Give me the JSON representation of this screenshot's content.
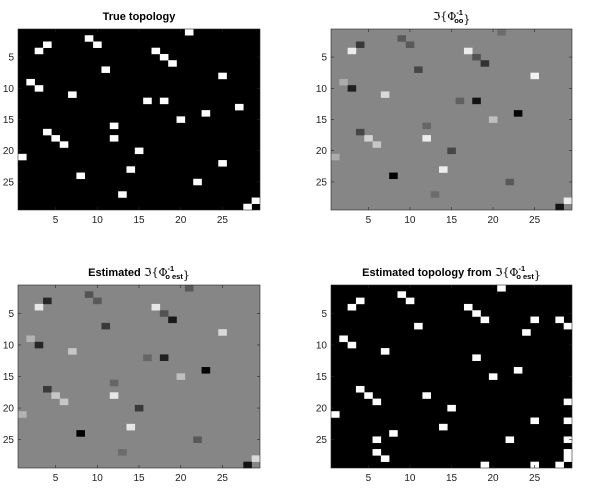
{
  "chart_data": [
    {
      "type": "heatmap",
      "title_parts": [
        {
          "t": "True topology"
        }
      ],
      "size": 29,
      "colormap": "gray",
      "clim": [
        -1,
        1
      ],
      "background": -1,
      "xticks": [
        5,
        10,
        15,
        20,
        25
      ],
      "yticks": [
        5,
        10,
        15,
        20,
        25
      ],
      "cells": [
        {
          "row": 1,
          "col": 21,
          "v": 1
        },
        {
          "row": 2,
          "col": 9,
          "v": 1
        },
        {
          "row": 3,
          "col": 4,
          "v": 1
        },
        {
          "row": 3,
          "col": 10,
          "v": 1
        },
        {
          "row": 4,
          "col": 3,
          "v": 1
        },
        {
          "row": 4,
          "col": 17,
          "v": 1
        },
        {
          "row": 5,
          "col": 18,
          "v": 1
        },
        {
          "row": 6,
          "col": 19,
          "v": 1
        },
        {
          "row": 7,
          "col": 11,
          "v": 1
        },
        {
          "row": 8,
          "col": 25,
          "v": 1
        },
        {
          "row": 9,
          "col": 2,
          "v": 1
        },
        {
          "row": 10,
          "col": 3,
          "v": 1
        },
        {
          "row": 11,
          "col": 7,
          "v": 1
        },
        {
          "row": 12,
          "col": 16,
          "v": 1
        },
        {
          "row": 12,
          "col": 18,
          "v": 1
        },
        {
          "row": 13,
          "col": 27,
          "v": 1
        },
        {
          "row": 14,
          "col": 23,
          "v": 1
        },
        {
          "row": 15,
          "col": 20,
          "v": 1
        },
        {
          "row": 16,
          "col": 12,
          "v": 1
        },
        {
          "row": 17,
          "col": 4,
          "v": 1
        },
        {
          "row": 18,
          "col": 5,
          "v": 1
        },
        {
          "row": 18,
          "col": 12,
          "v": 1
        },
        {
          "row": 19,
          "col": 6,
          "v": 1
        },
        {
          "row": 20,
          "col": 15,
          "v": 1
        },
        {
          "row": 21,
          "col": 1,
          "v": 1
        },
        {
          "row": 22,
          "col": 25,
          "v": 1
        },
        {
          "row": 23,
          "col": 14,
          "v": 1
        },
        {
          "row": 24,
          "col": 8,
          "v": 1
        },
        {
          "row": 25,
          "col": 22,
          "v": 1
        },
        {
          "row": 27,
          "col": 13,
          "v": 1
        },
        {
          "row": 28,
          "col": 29,
          "v": 1
        },
        {
          "row": 29,
          "col": 28,
          "v": 1
        }
      ]
    },
    {
      "type": "heatmap",
      "title_parts": [
        {
          "t": "ℑ{Φ",
          "m": true
        },
        {
          "sup": "-1",
          "sub": "oo"
        },
        {
          "t": "}",
          "m": true
        }
      ],
      "size": 29,
      "colormap": "gray",
      "clim": [
        -1,
        1
      ],
      "background": 0.05,
      "xticks": [
        5,
        10,
        15,
        20,
        25
      ],
      "yticks": [
        5,
        10,
        15,
        20,
        25
      ],
      "cells": [
        {
          "row": 1,
          "col": 21,
          "v": -0.15
        },
        {
          "row": 2,
          "col": 9,
          "v": -0.3
        },
        {
          "row": 3,
          "col": 4,
          "v": -0.55
        },
        {
          "row": 3,
          "col": 10,
          "v": -0.3
        },
        {
          "row": 4,
          "col": 3,
          "v": 0.85
        },
        {
          "row": 4,
          "col": 17,
          "v": 0.85
        },
        {
          "row": 5,
          "col": 18,
          "v": -0.35
        },
        {
          "row": 6,
          "col": 19,
          "v": -0.6
        },
        {
          "row": 7,
          "col": 11,
          "v": -0.45
        },
        {
          "row": 8,
          "col": 25,
          "v": 0.9
        },
        {
          "row": 9,
          "col": 2,
          "v": 0.35
        },
        {
          "row": 10,
          "col": 3,
          "v": -0.75
        },
        {
          "row": 11,
          "col": 7,
          "v": 0.7
        },
        {
          "row": 12,
          "col": 16,
          "v": -0.25
        },
        {
          "row": 12,
          "col": 18,
          "v": -0.85
        },
        {
          "row": 14,
          "col": 23,
          "v": -0.95
        },
        {
          "row": 15,
          "col": 20,
          "v": 0.5
        },
        {
          "row": 16,
          "col": 12,
          "v": -0.2
        },
        {
          "row": 17,
          "col": 4,
          "v": -0.45
        },
        {
          "row": 18,
          "col": 5,
          "v": 0.65
        },
        {
          "row": 18,
          "col": 12,
          "v": 0.85
        },
        {
          "row": 19,
          "col": 6,
          "v": 0.55
        },
        {
          "row": 20,
          "col": 15,
          "v": -0.45
        },
        {
          "row": 21,
          "col": 1,
          "v": 0.35
        },
        {
          "row": 23,
          "col": 14,
          "v": 0.85
        },
        {
          "row": 24,
          "col": 8,
          "v": -1.0
        },
        {
          "row": 25,
          "col": 22,
          "v": -0.3
        },
        {
          "row": 27,
          "col": 13,
          "v": -0.15
        },
        {
          "row": 28,
          "col": 29,
          "v": 0.85
        },
        {
          "row": 29,
          "col": 28,
          "v": -0.85
        }
      ]
    },
    {
      "type": "heatmap",
      "title_parts": [
        {
          "t": "Estimated "
        },
        {
          "t": "ℑ{Φ",
          "m": true
        },
        {
          "sup": "-1",
          "sub": "o est"
        },
        {
          "t": "}",
          "m": true
        }
      ],
      "size": 29,
      "colormap": "gray",
      "clim": [
        -1,
        1
      ],
      "background": 0.05,
      "xticks": [
        5,
        10,
        15,
        20,
        25
      ],
      "yticks": [
        5,
        10,
        15,
        20,
        25
      ],
      "cells": [
        {
          "row": 1,
          "col": 21,
          "v": -0.3
        },
        {
          "row": 2,
          "col": 9,
          "v": -0.35
        },
        {
          "row": 3,
          "col": 4,
          "v": -0.7
        },
        {
          "row": 3,
          "col": 10,
          "v": -0.3
        },
        {
          "row": 4,
          "col": 3,
          "v": 0.8
        },
        {
          "row": 4,
          "col": 17,
          "v": 0.8
        },
        {
          "row": 5,
          "col": 18,
          "v": -0.35
        },
        {
          "row": 6,
          "col": 19,
          "v": -0.8
        },
        {
          "row": 7,
          "col": 11,
          "v": -0.55
        },
        {
          "row": 8,
          "col": 25,
          "v": 0.7
        },
        {
          "row": 9,
          "col": 2,
          "v": 0.4
        },
        {
          "row": 10,
          "col": 3,
          "v": -0.7
        },
        {
          "row": 11,
          "col": 7,
          "v": 0.55
        },
        {
          "row": 12,
          "col": 16,
          "v": -0.2
        },
        {
          "row": 12,
          "col": 18,
          "v": -0.75
        },
        {
          "row": 14,
          "col": 23,
          "v": -0.95
        },
        {
          "row": 15,
          "col": 20,
          "v": 0.5
        },
        {
          "row": 16,
          "col": 12,
          "v": -0.2
        },
        {
          "row": 17,
          "col": 4,
          "v": -0.55
        },
        {
          "row": 18,
          "col": 5,
          "v": 0.55
        },
        {
          "row": 18,
          "col": 12,
          "v": 0.8
        },
        {
          "row": 19,
          "col": 6,
          "v": 0.55
        },
        {
          "row": 20,
          "col": 15,
          "v": -0.55
        },
        {
          "row": 21,
          "col": 1,
          "v": 0.4
        },
        {
          "row": 23,
          "col": 14,
          "v": 0.8
        },
        {
          "row": 24,
          "col": 8,
          "v": -1.0
        },
        {
          "row": 25,
          "col": 22,
          "v": -0.3
        },
        {
          "row": 27,
          "col": 13,
          "v": -0.15
        },
        {
          "row": 28,
          "col": 29,
          "v": 0.7
        },
        {
          "row": 29,
          "col": 28,
          "v": -0.85
        }
      ]
    },
    {
      "type": "heatmap",
      "title_parts": [
        {
          "t": "Estimated topology from "
        },
        {
          "t": "ℑ{Φ",
          "m": true
        },
        {
          "sup": "-1",
          "sub": "o est"
        },
        {
          "t": "}",
          "m": true
        }
      ],
      "size": 29,
      "colormap": "gray",
      "clim": [
        -1,
        1
      ],
      "background": -1,
      "xticks": [
        5,
        10,
        15,
        20,
        25
      ],
      "yticks": [
        5,
        10,
        15,
        20,
        25
      ],
      "cells": [
        {
          "row": 1,
          "col": 21,
          "v": 1
        },
        {
          "row": 2,
          "col": 9,
          "v": 1
        },
        {
          "row": 3,
          "col": 4,
          "v": 1
        },
        {
          "row": 3,
          "col": 10,
          "v": 1
        },
        {
          "row": 4,
          "col": 3,
          "v": 1
        },
        {
          "row": 4,
          "col": 17,
          "v": 1
        },
        {
          "row": 5,
          "col": 18,
          "v": 1
        },
        {
          "row": 6,
          "col": 19,
          "v": 1
        },
        {
          "row": 6,
          "col": 25,
          "v": 1
        },
        {
          "row": 6,
          "col": 28,
          "v": 1
        },
        {
          "row": 7,
          "col": 11,
          "v": 1
        },
        {
          "row": 7,
          "col": 29,
          "v": 1
        },
        {
          "row": 8,
          "col": 24,
          "v": 1
        },
        {
          "row": 9,
          "col": 2,
          "v": 1
        },
        {
          "row": 10,
          "col": 3,
          "v": 1
        },
        {
          "row": 11,
          "col": 7,
          "v": 1
        },
        {
          "row": 12,
          "col": 18,
          "v": 1
        },
        {
          "row": 14,
          "col": 23,
          "v": 1
        },
        {
          "row": 15,
          "col": 20,
          "v": 1
        },
        {
          "row": 17,
          "col": 4,
          "v": 1
        },
        {
          "row": 18,
          "col": 5,
          "v": 1
        },
        {
          "row": 18,
          "col": 12,
          "v": 1
        },
        {
          "row": 19,
          "col": 6,
          "v": 1
        },
        {
          "row": 19,
          "col": 29,
          "v": 1
        },
        {
          "row": 20,
          "col": 15,
          "v": 1
        },
        {
          "row": 21,
          "col": 1,
          "v": 1
        },
        {
          "row": 22,
          "col": 25,
          "v": 1
        },
        {
          "row": 22,
          "col": 29,
          "v": 1
        },
        {
          "row": 23,
          "col": 14,
          "v": 1
        },
        {
          "row": 24,
          "col": 8,
          "v": 1
        },
        {
          "row": 25,
          "col": 6,
          "v": 1
        },
        {
          "row": 25,
          "col": 22,
          "v": 1
        },
        {
          "row": 25,
          "col": 29,
          "v": 1
        },
        {
          "row": 27,
          "col": 6,
          "v": 1
        },
        {
          "row": 27,
          "col": 29,
          "v": 1
        },
        {
          "row": 28,
          "col": 7,
          "v": 1
        },
        {
          "row": 28,
          "col": 29,
          "v": 1
        },
        {
          "row": 29,
          "col": 19,
          "v": 1
        },
        {
          "row": 29,
          "col": 25,
          "v": 1
        },
        {
          "row": 29,
          "col": 28,
          "v": 1
        }
      ]
    }
  ]
}
